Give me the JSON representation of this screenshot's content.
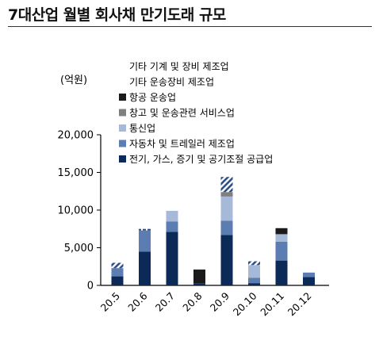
{
  "title": "7대산업 월별 회사채 만기도래 규모",
  "chart_data": {
    "type": "bar",
    "stacked": true,
    "ylabel": "(억원)",
    "ylim": [
      0,
      20000
    ],
    "yticks": [
      0,
      5000,
      10000,
      15000,
      20000
    ],
    "ytick_labels": [
      "0",
      "5,000",
      "10,000",
      "15,000",
      "20,000"
    ],
    "categories": [
      "20.5",
      "20.6",
      "20.7",
      "20.8",
      "20.9",
      "20.10",
      "20.11",
      "20.12"
    ],
    "legend_position": "top-left",
    "series": [
      {
        "name": "전기, 가스, 증기 및 공기조절 공급업",
        "color": "#0c2a57",
        "pattern": "solid",
        "values": [
          1200,
          4500,
          7100,
          300,
          6700,
          300,
          3300,
          1100
        ]
      },
      {
        "name": "자동차 및 트레일러 제조업",
        "color": "#5b7db1",
        "pattern": "solid",
        "values": [
          1100,
          2800,
          1400,
          0,
          1900,
          700,
          2500,
          600
        ]
      },
      {
        "name": "통신업",
        "color": "#a7b9d8",
        "pattern": "solid",
        "values": [
          0,
          0,
          1400,
          0,
          3200,
          1700,
          1000,
          0
        ]
      },
      {
        "name": "창고 및 운송관련 서비스업",
        "color": "#7f7f7f",
        "pattern": "solid",
        "values": [
          0,
          0,
          0,
          0,
          600,
          0,
          0,
          0
        ]
      },
      {
        "name": "항공 운송업",
        "color": "#1a1a1a",
        "pattern": "solid",
        "values": [
          0,
          0,
          0,
          1800,
          0,
          0,
          800,
          0
        ]
      },
      {
        "name": "기타 운송장비 제조업",
        "color": "#2e4f86",
        "pattern": "dashed",
        "values": [
          0,
          200,
          0,
          0,
          0,
          0,
          0,
          0
        ]
      },
      {
        "name": "기타 기계 및 장비 제조업",
        "color": "#2e4f86",
        "pattern": "hatch",
        "values": [
          700,
          0,
          0,
          0,
          2000,
          500,
          0,
          0
        ]
      }
    ]
  }
}
